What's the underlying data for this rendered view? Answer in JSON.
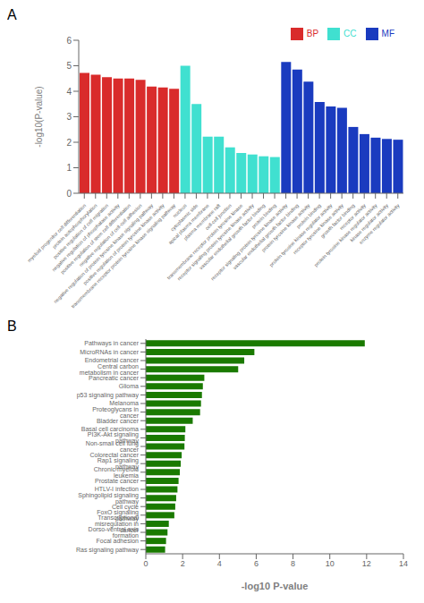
{
  "chart_data": [
    {
      "type": "bar",
      "title": "A",
      "categories": [
        "myeloid progenitor cell differentiation",
        "protein autophosphorylation",
        "positive regulation of cell migration",
        "negative regulation of phosphatase activity",
        "positive regulation of stem cell differentiation",
        "negative regulation of cell-cell adhesion",
        "negative regulation of protein tyrosine kinase signaling pathway",
        "positive regulation of protein tyrosine kinase activity",
        "transmembrane receptor protein tyrosine kinase signaling pathway",
        "nucleus",
        "cytoplasmic side",
        "apical plasma membrane",
        "plasma membrane raft",
        "cell-cell junction",
        "transmembrane receptor protein tyrosine kinase",
        "receptor signaling protein tyrosine kinase activity",
        "vascular endothelial growth factor binding",
        "protein binding",
        "receptor signaling protein tyrosine kinase activity",
        "vascular endothelial growth factor binding",
        "protein tyrosine kinase activity",
        "protein binding",
        "protein tyrosine kinase regulator activity",
        "receptor tyrosine kinase activity",
        "growth factor binding",
        "receptor activity",
        "protein tyrosine kinase regulator activity",
        "kinase regulator activity",
        "enzyme regulator activity"
      ],
      "series": [
        {
          "name": "BP",
          "color": "#d92b2b",
          "values": [
            4.72,
            4.65,
            4.55,
            4.5,
            4.5,
            4.45,
            4.18,
            4.15,
            4.1,
            null,
            null,
            null,
            null,
            null,
            null,
            null,
            null,
            null,
            null,
            null,
            null,
            null,
            null,
            null,
            null,
            null,
            null,
            null,
            null
          ]
        },
        {
          "name": "CC",
          "color": "#40e0d0",
          "values": [
            null,
            null,
            null,
            null,
            null,
            null,
            null,
            null,
            null,
            5.0,
            3.5,
            2.22,
            2.22,
            1.8,
            1.58,
            1.52,
            1.45,
            1.42,
            null,
            null,
            null,
            null,
            null,
            null,
            null,
            null,
            null,
            null,
            null
          ]
        },
        {
          "name": "MF",
          "color": "#1a3bbf",
          "values": [
            null,
            null,
            null,
            null,
            null,
            null,
            null,
            null,
            null,
            null,
            null,
            null,
            null,
            null,
            null,
            null,
            null,
            null,
            5.15,
            4.85,
            4.38,
            3.58,
            3.4,
            3.35,
            2.6,
            2.32,
            2.18,
            2.13,
            2.1
          ]
        }
      ],
      "ylabel": "-log10(P-value)",
      "ylim": [
        0,
        6
      ],
      "yticks": [
        0,
        1,
        2,
        3,
        4,
        5,
        6
      ],
      "legend": "upper right",
      "stacked": true,
      "grid": false
    },
    {
      "type": "bar",
      "title": "B",
      "orientation": "horizontal",
      "categories": [
        "Ras signaling pathway",
        "Focal adhesion",
        "Dorso-ventral axis formation",
        "Transcriptional misregulation in cancer",
        "FoxO signaling pathway",
        "Cell cycle",
        "Sphingolipid signaling pathway",
        "HTLV-I infection",
        "Prostate cancer",
        "Chronic myeloid leukemia",
        "Rap1 signaling pathway",
        "Colorectal cancer",
        "Non-small cell lung cancer",
        "PI3K-Akt signaling pathway",
        "Basal cell carcinoma",
        "Bladder cancer",
        "Proteoglycans in cancer",
        "Melanoma",
        "p53 signaling pathway",
        "Glioma",
        "Pancreatic cancer",
        "Central carbon metabolism in cancer",
        "Endometrial cancer",
        "MicroRNAs in cancer",
        "Pathways in cancer"
      ],
      "values": [
        1.05,
        1.1,
        1.18,
        1.25,
        1.55,
        1.6,
        1.65,
        1.72,
        1.78,
        1.85,
        1.9,
        1.95,
        2.1,
        2.12,
        2.15,
        2.55,
        2.95,
        3.0,
        3.05,
        3.1,
        3.18,
        5.02,
        5.35,
        5.9,
        11.9
      ],
      "color": "#1a7a00",
      "xlabel": "-log10 P-value",
      "xlim": [
        0,
        14
      ],
      "xticks": [
        0,
        2,
        4,
        6,
        8,
        10,
        12,
        14
      ],
      "grid": false
    }
  ]
}
